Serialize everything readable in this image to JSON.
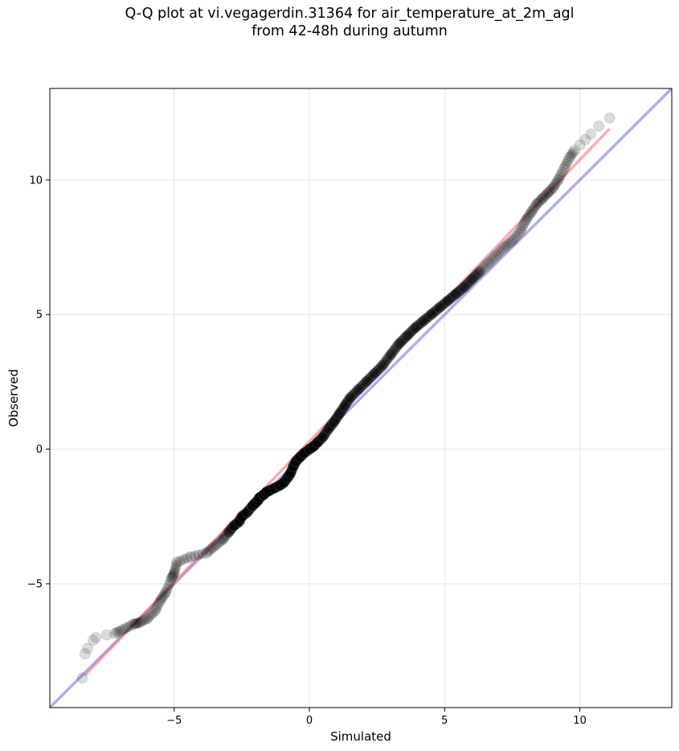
{
  "title": {
    "line1": "Q-Q plot at vi.vegagerdin.31364 for air_temperature_at_2m_agl",
    "line2": "from 42-48h during autumn"
  },
  "chart_data": {
    "type": "scatter",
    "title": "Q-Q plot at vi.vegagerdin.31364 for air_temperature_at_2m_agl from 42-48h during autumn",
    "xlabel": "Simulated",
    "ylabel": "Observed",
    "xlim": [
      -9.6,
      13.4
    ],
    "ylim": [
      -9.6,
      13.4
    ],
    "xticks": [
      -5,
      0,
      5,
      10
    ],
    "xtick_labels": [
      "−5",
      "0",
      "5",
      "10"
    ],
    "yticks": [
      -5,
      0,
      5,
      10
    ],
    "ytick_labels": [
      "−5",
      "0",
      "5",
      "10"
    ],
    "grid": true,
    "colors": {
      "points": "#000000",
      "fit_line": "#ff6666",
      "identity_line": "#7777ee",
      "grid": "#e6e6e6"
    },
    "series": [
      {
        "kind": "quantiles",
        "points": [
          [
            -8.4,
            -8.5
          ],
          [
            -8.3,
            -7.6
          ],
          [
            -8.2,
            -7.4
          ],
          [
            -8.0,
            -7.1
          ],
          [
            -7.9,
            -7.0
          ],
          [
            -7.5,
            -6.9
          ],
          [
            -7.2,
            -6.85
          ],
          [
            -6.9,
            -6.7
          ],
          [
            -6.5,
            -6.5
          ],
          [
            -6.3,
            -6.45
          ],
          [
            -6.0,
            -6.3
          ],
          [
            -5.7,
            -6.0
          ],
          [
            -5.5,
            -5.6
          ],
          [
            -5.3,
            -5.3
          ],
          [
            -5.1,
            -4.8
          ],
          [
            -5.0,
            -4.6
          ],
          [
            -4.9,
            -4.2
          ],
          [
            -4.4,
            -4.0
          ],
          [
            -3.8,
            -3.85
          ],
          [
            -3.5,
            -3.6
          ],
          [
            -3.2,
            -3.35
          ],
          [
            -3.0,
            -3.1
          ],
          [
            -2.8,
            -2.85
          ],
          [
            -2.6,
            -2.7
          ],
          [
            -2.5,
            -2.5
          ],
          [
            -2.3,
            -2.35
          ],
          [
            -2.1,
            -2.1
          ],
          [
            -2.0,
            -2.0
          ],
          [
            -1.9,
            -1.9
          ],
          [
            -1.85,
            -1.8
          ],
          [
            -1.7,
            -1.7
          ],
          [
            -1.6,
            -1.6
          ],
          [
            -1.5,
            -1.55
          ],
          [
            -1.3,
            -1.45
          ],
          [
            -1.1,
            -1.35
          ],
          [
            -0.95,
            -1.25
          ],
          [
            -0.8,
            -1.05
          ],
          [
            -0.7,
            -0.9
          ],
          [
            -0.6,
            -0.65
          ],
          [
            -0.5,
            -0.45
          ],
          [
            -0.35,
            -0.3
          ],
          [
            -0.2,
            -0.15
          ],
          [
            0.0,
            0.0
          ],
          [
            0.15,
            0.1
          ],
          [
            0.3,
            0.25
          ],
          [
            0.5,
            0.45
          ],
          [
            0.7,
            0.75
          ],
          [
            0.9,
            1.0
          ],
          [
            1.1,
            1.3
          ],
          [
            1.3,
            1.6
          ],
          [
            1.5,
            1.9
          ],
          [
            1.8,
            2.2
          ],
          [
            2.1,
            2.5
          ],
          [
            2.4,
            2.8
          ],
          [
            2.7,
            3.1
          ],
          [
            3.0,
            3.5
          ],
          [
            3.3,
            3.9
          ],
          [
            3.6,
            4.2
          ],
          [
            3.9,
            4.5
          ],
          [
            4.2,
            4.75
          ],
          [
            4.5,
            5.0
          ],
          [
            4.8,
            5.25
          ],
          [
            5.1,
            5.5
          ],
          [
            5.4,
            5.75
          ],
          [
            5.7,
            6.0
          ],
          [
            6.0,
            6.3
          ],
          [
            6.3,
            6.6
          ],
          [
            6.6,
            6.9
          ],
          [
            6.9,
            7.2
          ],
          [
            7.2,
            7.5
          ],
          [
            7.5,
            7.75
          ],
          [
            7.8,
            8.1
          ],
          [
            8.0,
            8.5
          ],
          [
            8.2,
            8.8
          ],
          [
            8.4,
            9.1
          ],
          [
            8.6,
            9.3
          ],
          [
            8.8,
            9.5
          ],
          [
            9.0,
            9.7
          ],
          [
            9.2,
            10.0
          ],
          [
            9.4,
            10.4
          ],
          [
            9.6,
            10.8
          ],
          [
            9.8,
            11.1
          ],
          [
            10.0,
            11.3
          ],
          [
            10.2,
            11.5
          ],
          [
            10.4,
            11.7
          ],
          [
            10.7,
            12.0
          ],
          [
            11.1,
            12.3
          ]
        ]
      },
      {
        "kind": "fit",
        "points": [
          [
            -8.3,
            -8.4
          ],
          [
            11.1,
            11.9
          ]
        ]
      },
      {
        "kind": "identity",
        "points": [
          [
            -9.6,
            -9.6
          ],
          [
            13.4,
            13.4
          ]
        ]
      }
    ]
  }
}
